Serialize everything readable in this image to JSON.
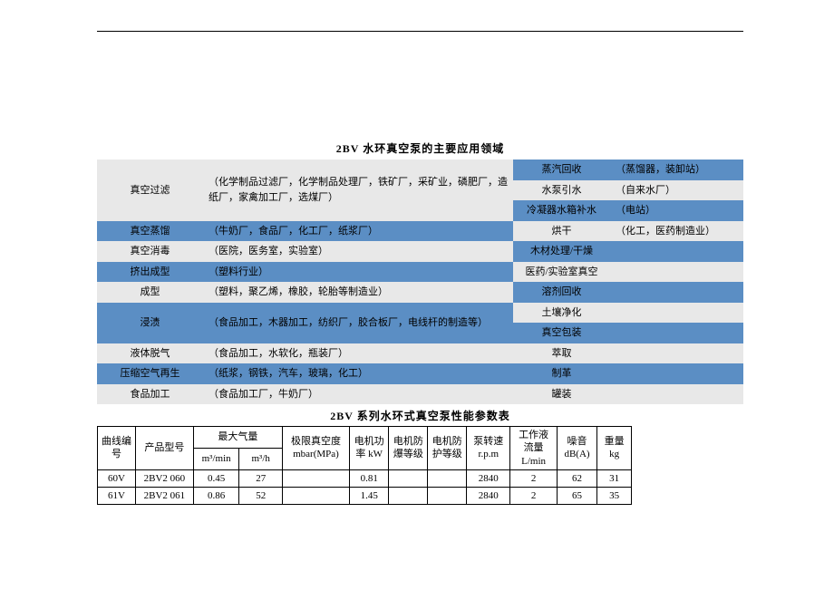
{
  "colors": {
    "blue_row": "#5b8ec4",
    "gray_row": "#e8e8e8",
    "page_bg": "#ffffff",
    "text": "#000000",
    "border": "#000000"
  },
  "typography": {
    "base_font": "SimSun",
    "base_size_pt": 9,
    "title_size_pt": 9,
    "title_weight": "bold"
  },
  "title1": "2BV 水环真空泵的主要应用领域",
  "app_rows": [
    {
      "lc_bg": "gray",
      "ld_bg": "gray",
      "rc_bg": "blue",
      "rd_bg": "blue",
      "lc": "真空过滤",
      "lc_rowspan": 3,
      "ld": "（化学制品过滤厂，化学制品处理厂，铁矿厂，采矿业，磷肥厂，造纸厂，家禽加工厂，选煤厂）",
      "ld_rowspan": 3,
      "rc": "蒸汽回收",
      "rd": "（蒸馏器，装卸站）"
    },
    {
      "rc_bg": "gray",
      "rd_bg": "gray",
      "rc": "水泵引水",
      "rd": "（自来水厂）"
    },
    {
      "rc_bg": "blue",
      "rd_bg": "blue",
      "rc": "冷凝器水箱补水",
      "rd": "（电站）"
    },
    {
      "lc_bg": "blue",
      "ld_bg": "blue",
      "rc_bg": "gray",
      "rd_bg": "gray",
      "lc": "真空蒸馏",
      "ld": "（牛奶厂，食品厂，化工厂，纸浆厂）",
      "rc": "烘干",
      "rd": "（化工，医药制造业）"
    },
    {
      "lc_bg": "gray",
      "ld_bg": "gray",
      "rc_bg": "blue",
      "rd_bg": "blue",
      "lc": "真空消毒",
      "ld": "（医院，医务室，实验室）",
      "rc": "木材处理/干燥",
      "rd": ""
    },
    {
      "lc_bg": "blue",
      "ld_bg": "blue",
      "rc_bg": "gray",
      "rd_bg": "gray",
      "lc": "挤出成型",
      "ld": "（塑料行业）",
      "rc": "医药/实验室真空",
      "rd": ""
    },
    {
      "lc_bg": "gray",
      "ld_bg": "gray",
      "rc_bg": "blue",
      "rd_bg": "blue",
      "lc": "成型",
      "ld": "（塑料，聚乙烯，橡胶，轮胎等制造业）",
      "rc": "溶剂回收",
      "rd": ""
    },
    {
      "lc_bg": "blue",
      "ld_bg": "blue",
      "rc_bg": "gray",
      "rd_bg": "gray",
      "lc": "浸渍",
      "lc_rowspan": 2,
      "ld": "（食品加工，木器加工，纺织厂，胶合板厂，电线杆的制造等）",
      "ld_rowspan": 2,
      "rc": "土壤净化",
      "rd": ""
    },
    {
      "rc_bg": "blue",
      "rd_bg": "blue",
      "rc": "真空包装",
      "rd": ""
    },
    {
      "lc_bg": "gray",
      "ld_bg": "gray",
      "rc_bg": "gray",
      "rd_bg": "gray",
      "lc": "液体脱气",
      "ld": "（食品加工，水软化，瓶装厂）",
      "rc": "萃取",
      "rd": ""
    },
    {
      "lc_bg": "blue",
      "ld_bg": "blue",
      "rc_bg": "blue",
      "rd_bg": "blue",
      "lc": "压缩空气再生",
      "ld": "（纸浆，钢铁，汽车，玻璃，化工）",
      "rc": "制革",
      "rd": ""
    },
    {
      "lc_bg": "gray",
      "ld_bg": "gray",
      "rc_bg": "gray",
      "rd_bg": "gray",
      "lc": "食品加工",
      "ld": "（食品加工厂，牛奶厂）",
      "rc": "罐装",
      "rd": ""
    }
  ],
  "title2": "2BV 系列水环式真空泵性能参数表",
  "spec_headers_r1": [
    "曲线编号",
    "产品型号",
    "最大气量",
    "极限真空度 mbar(MPa)",
    "电机功率 kW",
    "电机防爆等级",
    "电机防护等级",
    "泵转速 r.p.m",
    "工作液流量 L/min",
    "噪音 dB(A)",
    "重量 kg"
  ],
  "spec_headers_r2": [
    "m³/min",
    "m³/h"
  ],
  "spec_rows": [
    [
      "60V",
      "2BV2 060",
      "0.45",
      "27",
      "",
      "0.81",
      "",
      "",
      "2840",
      "2",
      "62",
      "31"
    ],
    [
      "61V",
      "2BV2 061",
      "0.86",
      "52",
      "",
      "1.45",
      "",
      "",
      "2840",
      "2",
      "65",
      "35"
    ]
  ]
}
